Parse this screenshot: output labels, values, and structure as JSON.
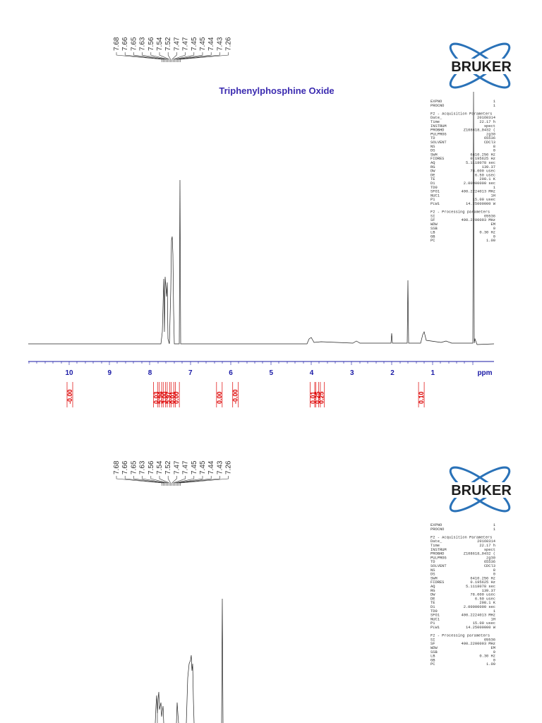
{
  "panels": [
    {
      "logo": "BRUKER",
      "title": "Triphenylphosphine Oxide",
      "peak_labels": [
        "7.68",
        "7.66",
        "7.65",
        "7.63",
        "7.56",
        "7.54",
        "7.52",
        "7.47",
        "7.47",
        "7.45",
        "7.45",
        "7.44",
        "7.43",
        "7.26"
      ],
      "axis_ticks": [
        "10",
        "9",
        "8",
        "7",
        "6",
        "5",
        "4",
        "3",
        "2",
        "1"
      ],
      "axis_unit": "ppm",
      "integrals": [
        "-0.00",
        "0.03",
        "5.94",
        "3.00",
        "5.97",
        "0.01",
        "0.00",
        "0.00",
        "-0.00",
        "0.01",
        "0.25",
        "0.25",
        "0.10"
      ],
      "parameter_sections": [
        {
          "rows": [
            [
              "EXPNO",
              "1"
            ],
            [
              "PROCNO",
              "1"
            ]
          ]
        },
        {
          "heading": "F2 - Acquisition Parameters",
          "rows": [
            [
              "Date_",
              "20160314"
            ],
            [
              "Time",
              "22.17 h"
            ],
            [
              "INSTRUM",
              "spect"
            ],
            [
              "PROBHD",
              "Z108618_0432 ("
            ],
            [
              "PULPROG",
              "zg30"
            ],
            [
              "TD",
              "65536"
            ],
            [
              "SOLVENT",
              "CDCl3"
            ],
            [
              "NS",
              "8"
            ],
            [
              "DS",
              "0"
            ],
            [
              "SWH",
              "6410.256 Hz"
            ],
            [
              "FIDRES",
              "0.195625 Hz"
            ],
            [
              "AQ",
              "5.1118078 sec"
            ],
            [
              "RG",
              "139.37"
            ],
            [
              "DW",
              "78.000 usec"
            ],
            [
              "DE",
              "6.50 usec"
            ],
            [
              "TE",
              "298.1 K"
            ],
            [
              "D1",
              "2.00000000 sec"
            ],
            [
              "TD0",
              "1"
            ],
            [
              "SFO1",
              "400.2224013 MHz"
            ],
            [
              "NUC1",
              "1H"
            ],
            [
              "P1",
              "15.00 usec"
            ],
            [
              "PLW1",
              "14.25000000 W"
            ]
          ]
        },
        {
          "heading": "F2 - Processing parameters",
          "rows": [
            [
              "SI",
              "65536"
            ],
            [
              "SF",
              "400.2200093 MHz"
            ],
            [
              "WDW",
              "EM"
            ],
            [
              "SSB",
              "0"
            ],
            [
              "LB",
              "0.30 Hz"
            ],
            [
              "GB",
              "0"
            ],
            [
              "PC",
              "1.00"
            ]
          ]
        }
      ]
    },
    {
      "logo": "BRUKER",
      "peak_labels": [
        "7.68",
        "7.66",
        "7.65",
        "7.63",
        "7.56",
        "7.54",
        "7.52",
        "7.47",
        "7.47",
        "7.45",
        "7.45",
        "7.44",
        "7.43",
        "7.26"
      ],
      "parameter_sections": [
        {
          "rows": [
            [
              "EXPNO",
              "1"
            ],
            [
              "PROCNO",
              "1"
            ]
          ]
        },
        {
          "heading": "F2 - Acquisition Parameters",
          "rows": [
            [
              "Date_",
              "20160314"
            ],
            [
              "Time",
              "22.17 h"
            ],
            [
              "INSTRUM",
              "spect"
            ],
            [
              "PROBHD",
              "Z108618_0432 ("
            ],
            [
              "PULPROG",
              "zg30"
            ],
            [
              "TD",
              "65536"
            ],
            [
              "SOLVENT",
              "CDCl3"
            ],
            [
              "NS",
              "8"
            ],
            [
              "DS",
              "0"
            ],
            [
              "SWH",
              "6410.256 Hz"
            ],
            [
              "FIDRES",
              "0.195625 Hz"
            ],
            [
              "AQ",
              "5.1118078 sec"
            ],
            [
              "RG",
              "139.37"
            ],
            [
              "DW",
              "78.000 usec"
            ],
            [
              "DE",
              "6.50 usec"
            ],
            [
              "TE",
              "298.1 K"
            ],
            [
              "D1",
              "2.00000000 sec"
            ],
            [
              "TD0",
              "1"
            ],
            [
              "SFO1",
              "400.2224013 MHz"
            ],
            [
              "NUC1",
              "1H"
            ],
            [
              "P1",
              "15.00 usec"
            ],
            [
              "PLW1",
              "14.25000000 W"
            ]
          ]
        },
        {
          "heading": "F2 - Processing parameters",
          "rows": [
            [
              "SI",
              "65536"
            ],
            [
              "SF",
              "400.2200093 MHz"
            ],
            [
              "WDW",
              "EM"
            ],
            [
              "SSB",
              "0"
            ],
            [
              "LB",
              "0.30 Hz"
            ],
            [
              "GB",
              "0"
            ],
            [
              "PC",
              "1.00"
            ]
          ]
        }
      ]
    }
  ]
}
